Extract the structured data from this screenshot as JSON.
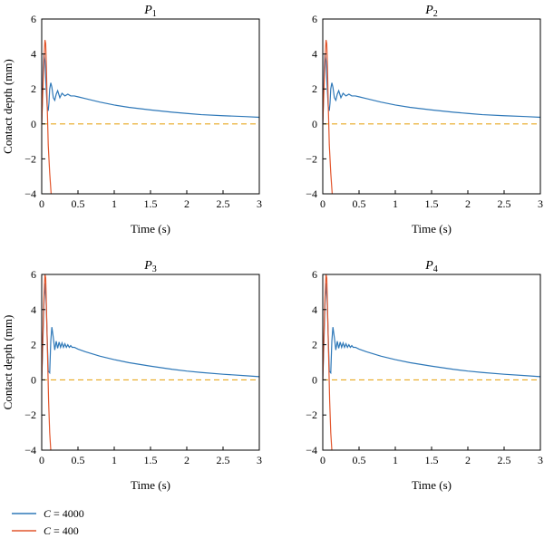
{
  "chart_data": [
    {
      "type": "line",
      "title": "P",
      "title_sub": "1",
      "xlabel": "Time (s)",
      "ylabel": "Contact depth (mm)",
      "xlim": [
        0,
        3
      ],
      "ylim": [
        -4,
        6
      ],
      "xticks": [
        0,
        0.5,
        1,
        1.5,
        2,
        2.5,
        3
      ],
      "yticks": [
        -4,
        -2,
        0,
        2,
        4,
        6
      ],
      "grid": false,
      "series": [
        {
          "name": "C = 4000",
          "color": "#2e78b8",
          "x": [
            0,
            0.01,
            0.02,
            0.03,
            0.045,
            0.06,
            0.075,
            0.09,
            0.1,
            0.11,
            0.125,
            0.14,
            0.16,
            0.18,
            0.2,
            0.22,
            0.25,
            0.28,
            0.32,
            0.36,
            0.4,
            0.45,
            0.5,
            0.6,
            0.8,
            1.0,
            1.2,
            1.5,
            1.8,
            2.0,
            2.2,
            2.5,
            2.8,
            3.0
          ],
          "y": [
            0,
            1.5,
            3.2,
            4.0,
            3.6,
            2.2,
            1.0,
            0.75,
            1.2,
            2.0,
            2.35,
            2.1,
            1.5,
            1.35,
            1.7,
            1.9,
            1.5,
            1.75,
            1.6,
            1.7,
            1.6,
            1.6,
            1.55,
            1.45,
            1.25,
            1.08,
            0.95,
            0.8,
            0.67,
            0.6,
            0.53,
            0.47,
            0.42,
            0.38
          ]
        },
        {
          "name": "C = 400",
          "color": "#e2562d",
          "x": [
            0,
            0.015,
            0.03,
            0.045,
            0.055,
            0.065,
            0.075,
            0.09,
            0.11,
            0.13
          ],
          "y": [
            0,
            1.8,
            3.6,
            4.8,
            4.6,
            3.2,
            1.2,
            -1.2,
            -2.8,
            -4.0
          ]
        },
        {
          "name": "",
          "color": "#e8a820",
          "dashed": true,
          "x": [
            0,
            3
          ],
          "y": [
            0,
            0
          ]
        }
      ]
    },
    {
      "type": "line",
      "title": "P",
      "title_sub": "2",
      "xlabel": "Time (s)",
      "ylabel": "",
      "xlim": [
        0,
        3
      ],
      "ylim": [
        -4,
        6
      ],
      "xticks": [
        0,
        0.5,
        1,
        1.5,
        2,
        2.5,
        3
      ],
      "yticks": [
        -4,
        -2,
        0,
        2,
        4,
        6
      ],
      "grid": false,
      "series": [
        {
          "name": "C = 4000",
          "color": "#2e78b8",
          "x": [
            0,
            0.01,
            0.02,
            0.03,
            0.045,
            0.06,
            0.075,
            0.09,
            0.1,
            0.11,
            0.125,
            0.14,
            0.16,
            0.18,
            0.2,
            0.22,
            0.25,
            0.28,
            0.32,
            0.36,
            0.4,
            0.45,
            0.5,
            0.6,
            0.8,
            1.0,
            1.2,
            1.5,
            1.8,
            2.0,
            2.2,
            2.5,
            2.8,
            3.0
          ],
          "y": [
            0,
            1.5,
            3.2,
            4.0,
            3.6,
            2.2,
            1.0,
            0.75,
            1.2,
            2.0,
            2.35,
            2.1,
            1.5,
            1.35,
            1.7,
            1.9,
            1.5,
            1.75,
            1.6,
            1.7,
            1.6,
            1.6,
            1.55,
            1.45,
            1.25,
            1.08,
            0.95,
            0.8,
            0.67,
            0.6,
            0.53,
            0.47,
            0.42,
            0.38
          ]
        },
        {
          "name": "C = 400",
          "color": "#e2562d",
          "x": [
            0,
            0.015,
            0.03,
            0.045,
            0.055,
            0.065,
            0.075,
            0.09,
            0.11,
            0.13
          ],
          "y": [
            0,
            1.8,
            3.6,
            4.8,
            4.6,
            3.2,
            1.2,
            -1.2,
            -2.8,
            -4.0
          ]
        },
        {
          "name": "",
          "color": "#e8a820",
          "dashed": true,
          "x": [
            0,
            3
          ],
          "y": [
            0,
            0
          ]
        }
      ]
    },
    {
      "type": "line",
      "title": "P",
      "title_sub": "3",
      "xlabel": "Time (s)",
      "ylabel": "Contact depth (mm)",
      "xlim": [
        0,
        3
      ],
      "ylim": [
        -4,
        6
      ],
      "xticks": [
        0,
        0.5,
        1,
        1.5,
        2,
        2.5,
        3
      ],
      "yticks": [
        -4,
        -2,
        0,
        2,
        4,
        6
      ],
      "grid": false,
      "series": [
        {
          "name": "C = 4000",
          "color": "#2e78b8",
          "x": [
            0,
            0.015,
            0.03,
            0.045,
            0.06,
            0.075,
            0.09,
            0.11,
            0.125,
            0.14,
            0.16,
            0.18,
            0.2,
            0.22,
            0.24,
            0.26,
            0.28,
            0.3,
            0.32,
            0.34,
            0.36,
            0.38,
            0.4,
            0.42,
            0.45,
            0.5,
            0.6,
            0.8,
            1.0,
            1.2,
            1.5,
            1.8,
            2.0,
            2.2,
            2.5,
            2.8,
            3.0
          ],
          "y": [
            0,
            2.0,
            4.2,
            5.5,
            4.6,
            2.5,
            0.5,
            0.4,
            2.2,
            3.0,
            2.4,
            1.7,
            2.2,
            1.8,
            2.15,
            1.85,
            2.1,
            1.85,
            2.05,
            1.85,
            2.0,
            1.85,
            1.95,
            1.85,
            1.85,
            1.75,
            1.6,
            1.35,
            1.15,
            0.98,
            0.78,
            0.6,
            0.5,
            0.42,
            0.32,
            0.24,
            0.18
          ]
        },
        {
          "name": "C = 400",
          "color": "#e2562d",
          "x": [
            0,
            0.015,
            0.03,
            0.045,
            0.055,
            0.065,
            0.08,
            0.095,
            0.11,
            0.125
          ],
          "y": [
            0,
            2.4,
            4.6,
            6.0,
            5.8,
            4.2,
            1.5,
            -1.2,
            -3.0,
            -4.0
          ]
        },
        {
          "name": "",
          "color": "#e8a820",
          "dashed": true,
          "x": [
            0,
            3
          ],
          "y": [
            0,
            0
          ]
        }
      ]
    },
    {
      "type": "line",
      "title": "P",
      "title_sub": "4",
      "xlabel": "Time (s)",
      "ylabel": "",
      "xlim": [
        0,
        3
      ],
      "ylim": [
        -4,
        6
      ],
      "xticks": [
        0,
        0.5,
        1,
        1.5,
        2,
        2.5,
        3
      ],
      "yticks": [
        -4,
        -2,
        0,
        2,
        4,
        6
      ],
      "grid": false,
      "series": [
        {
          "name": "C = 4000",
          "color": "#2e78b8",
          "x": [
            0,
            0.015,
            0.03,
            0.045,
            0.06,
            0.075,
            0.09,
            0.11,
            0.125,
            0.14,
            0.16,
            0.18,
            0.2,
            0.22,
            0.24,
            0.26,
            0.28,
            0.3,
            0.32,
            0.34,
            0.36,
            0.38,
            0.4,
            0.42,
            0.45,
            0.5,
            0.6,
            0.8,
            1.0,
            1.2,
            1.5,
            1.8,
            2.0,
            2.2,
            2.5,
            2.8,
            3.0
          ],
          "y": [
            0,
            2.0,
            4.2,
            5.5,
            4.6,
            2.5,
            0.5,
            0.4,
            2.2,
            3.0,
            2.4,
            1.7,
            2.2,
            1.8,
            2.15,
            1.85,
            2.1,
            1.85,
            2.05,
            1.85,
            2.0,
            1.85,
            1.95,
            1.85,
            1.85,
            1.75,
            1.6,
            1.35,
            1.15,
            0.98,
            0.78,
            0.6,
            0.5,
            0.42,
            0.32,
            0.24,
            0.18
          ]
        },
        {
          "name": "C = 400",
          "color": "#e2562d",
          "x": [
            0,
            0.015,
            0.03,
            0.045,
            0.055,
            0.065,
            0.08,
            0.095,
            0.11,
            0.125
          ],
          "y": [
            0,
            2.4,
            4.6,
            6.0,
            5.8,
            4.2,
            1.5,
            -1.2,
            -3.0,
            -4.0
          ]
        },
        {
          "name": "",
          "color": "#e8a820",
          "dashed": true,
          "x": [
            0,
            3
          ],
          "y": [
            0,
            0
          ]
        }
      ]
    }
  ],
  "legend": {
    "placement": "bottom-left",
    "items": [
      {
        "label": "C = 4000",
        "italic_prefix": "C",
        "rest": " = 4000",
        "color": "#2e78b8"
      },
      {
        "label": "C = 400",
        "italic_prefix": "C",
        "rest": " = 400",
        "color": "#e2562d"
      }
    ]
  }
}
